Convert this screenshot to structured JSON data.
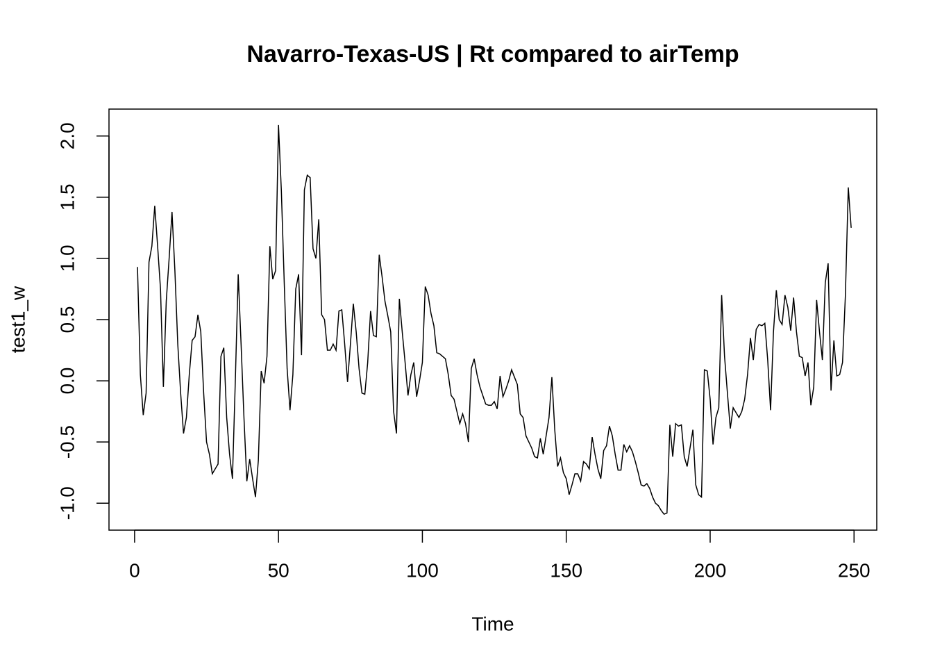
{
  "chart_data": {
    "type": "line",
    "title": "Navarro-Texas-US | Rt compared to airTemp",
    "x_label": "Time",
    "y_label": "test1_w",
    "x": [
      1,
      2,
      3,
      4,
      5,
      6,
      7,
      8,
      9,
      10,
      11,
      12,
      13,
      14,
      15,
      16,
      17,
      18,
      19,
      20,
      21,
      22,
      23,
      24,
      25,
      26,
      27,
      28,
      29,
      30,
      31,
      32,
      33,
      34,
      35,
      36,
      37,
      38,
      39,
      40,
      41,
      42,
      43,
      44,
      45,
      46,
      47,
      48,
      49,
      50,
      51,
      52,
      53,
      54,
      55,
      56,
      57,
      58,
      59,
      60,
      61,
      62,
      63,
      64,
      65,
      66,
      67,
      68,
      69,
      70,
      71,
      72,
      73,
      74,
      75,
      76,
      77,
      78,
      79,
      80,
      81,
      82,
      83,
      84,
      85,
      86,
      87,
      88,
      89,
      90,
      91,
      92,
      93,
      94,
      95,
      96,
      97,
      98,
      99,
      100,
      101,
      102,
      103,
      104,
      105,
      106,
      107,
      108,
      109,
      110,
      111,
      112,
      113,
      114,
      115,
      116,
      117,
      118,
      119,
      120,
      121,
      122,
      123,
      124,
      125,
      126,
      127,
      128,
      129,
      130,
      131,
      132,
      133,
      134,
      135,
      136,
      137,
      138,
      139,
      140,
      141,
      142,
      143,
      144,
      145,
      146,
      147,
      148,
      149,
      150,
      151,
      152,
      153,
      154,
      155,
      156,
      157,
      158,
      159,
      160,
      161,
      162,
      163,
      164,
      165,
      166,
      167,
      168,
      169,
      170,
      171,
      172,
      173,
      174,
      175,
      176,
      177,
      178,
      179,
      180,
      181,
      182,
      183,
      184,
      185,
      186,
      187,
      188,
      189,
      190,
      191,
      192,
      193,
      194,
      195,
      196,
      197,
      198,
      199,
      200,
      201,
      202,
      203,
      204,
      205,
      206,
      207,
      208,
      209,
      210,
      211,
      212,
      213,
      214,
      215,
      216,
      217,
      218,
      219,
      220,
      221,
      222,
      223,
      224,
      225,
      226,
      227,
      228,
      229,
      230,
      231,
      232,
      233,
      234,
      235,
      236,
      237,
      238,
      239,
      240,
      241,
      242,
      243,
      244,
      245,
      246,
      247,
      248,
      249
    ],
    "series": [
      {
        "name": "test1_w",
        "color": "#000000",
        "values": [
          0.93,
          0.05,
          -0.28,
          -0.1,
          0.97,
          1.1,
          1.43,
          1.1,
          0.75,
          -0.05,
          0.65,
          1.0,
          1.38,
          0.9,
          0.3,
          -0.1,
          -0.43,
          -0.3,
          0.05,
          0.33,
          0.36,
          0.54,
          0.4,
          -0.1,
          -0.5,
          -0.6,
          -0.76,
          -0.72,
          -0.68,
          0.2,
          0.27,
          -0.3,
          -0.6,
          -0.8,
          0.0,
          0.87,
          0.3,
          -0.3,
          -0.82,
          -0.64,
          -0.8,
          -0.95,
          -0.65,
          0.08,
          -0.02,
          0.2,
          1.1,
          0.83,
          0.9,
          2.09,
          1.55,
          0.8,
          0.1,
          -0.24,
          0.05,
          0.75,
          0.87,
          0.21,
          1.56,
          1.68,
          1.66,
          1.08,
          1.0,
          1.32,
          0.54,
          0.5,
          0.25,
          0.25,
          0.3,
          0.25,
          0.57,
          0.58,
          0.3,
          -0.01,
          0.3,
          0.63,
          0.4,
          0.1,
          -0.1,
          -0.11,
          0.15,
          0.57,
          0.37,
          0.36,
          1.03,
          0.85,
          0.65,
          0.53,
          0.4,
          -0.25,
          -0.43,
          0.67,
          0.4,
          0.15,
          -0.12,
          0.05,
          0.15,
          -0.13,
          0.0,
          0.15,
          0.77,
          0.7,
          0.55,
          0.45,
          0.23,
          0.22,
          0.2,
          0.18,
          0.05,
          -0.12,
          -0.15,
          -0.25,
          -0.35,
          -0.27,
          -0.35,
          -0.5,
          0.1,
          0.18,
          0.05,
          -0.05,
          -0.12,
          -0.19,
          -0.2,
          -0.2,
          -0.17,
          -0.23,
          0.04,
          -0.13,
          -0.07,
          0.0,
          0.09,
          0.03,
          -0.03,
          -0.27,
          -0.3,
          -0.45,
          -0.5,
          -0.55,
          -0.62,
          -0.63,
          -0.47,
          -0.6,
          -0.45,
          -0.3,
          0.03,
          -0.4,
          -0.7,
          -0.63,
          -0.75,
          -0.8,
          -0.93,
          -0.85,
          -0.76,
          -0.76,
          -0.82,
          -0.66,
          -0.68,
          -0.72,
          -0.46,
          -0.6,
          -0.72,
          -0.8,
          -0.57,
          -0.53,
          -0.37,
          -0.45,
          -0.6,
          -0.73,
          -0.73,
          -0.52,
          -0.58,
          -0.53,
          -0.58,
          -0.66,
          -0.75,
          -0.85,
          -0.86,
          -0.84,
          -0.88,
          -0.95,
          -1.0,
          -1.02,
          -1.06,
          -1.09,
          -1.08,
          -0.36,
          -0.62,
          -0.35,
          -0.37,
          -0.36,
          -0.62,
          -0.7,
          -0.55,
          -0.4,
          -0.85,
          -0.93,
          -0.95,
          0.09,
          0.08,
          -0.15,
          -0.52,
          -0.3,
          -0.22,
          0.7,
          0.2,
          -0.1,
          -0.39,
          -0.22,
          -0.26,
          -0.3,
          -0.25,
          -0.15,
          0.05,
          0.35,
          0.17,
          0.42,
          0.46,
          0.45,
          0.47,
          0.17,
          -0.24,
          0.4,
          0.74,
          0.5,
          0.46,
          0.7,
          0.6,
          0.41,
          0.68,
          0.4,
          0.2,
          0.19,
          0.04,
          0.15,
          -0.2,
          -0.05,
          0.66,
          0.4,
          0.17,
          0.8,
          0.96,
          -0.08,
          0.33,
          0.04,
          0.05,
          0.15,
          0.7,
          1.58,
          1.25
        ]
      }
    ],
    "xlim": [
      -8.9,
      257.9
    ],
    "ylim": [
      -1.22,
      2.22
    ],
    "xticks": [
      0,
      50,
      100,
      150,
      200,
      250
    ],
    "yticks": [
      {
        "value": -1.0,
        "label": "-1.0"
      },
      -0.5,
      {
        "value": 0.0,
        "label": "0.0"
      },
      0.5,
      {
        "value": 1.0,
        "label": "1.0"
      },
      1.5,
      {
        "value": 2.0,
        "label": "2.0"
      }
    ]
  }
}
